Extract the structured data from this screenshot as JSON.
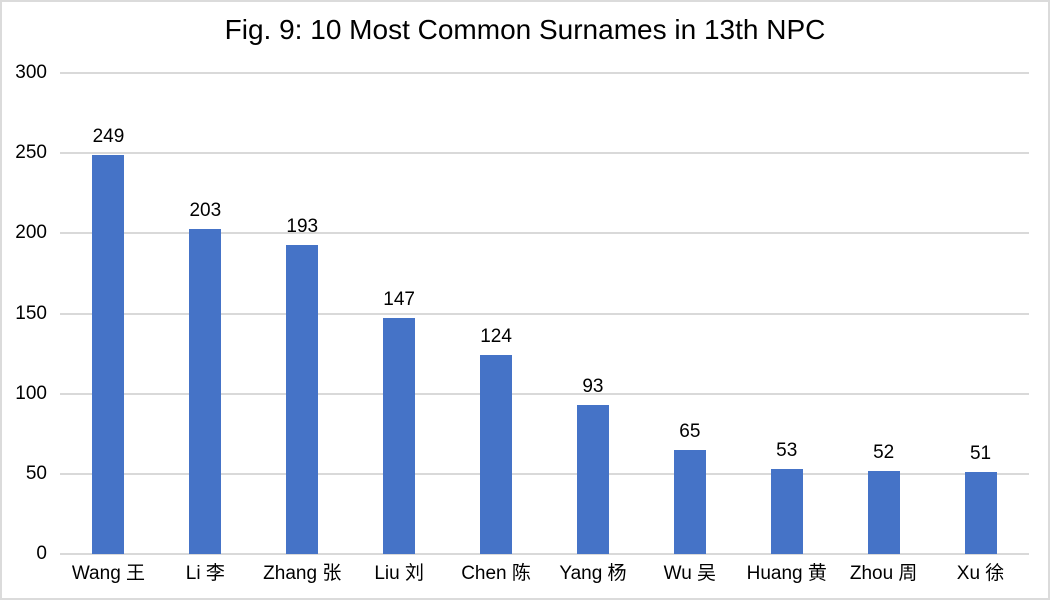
{
  "chart_data": {
    "type": "bar",
    "title": "Fig. 9: 10 Most Common Surnames in 13th NPC",
    "categories": [
      "Wang 王",
      "Li 李",
      "Zhang 张",
      "Liu 刘",
      "Chen 陈",
      "Yang 杨",
      "Wu 吴",
      "Huang 黄",
      "Zhou 周",
      "Xu 徐"
    ],
    "values": [
      249,
      203,
      193,
      147,
      124,
      93,
      65,
      53,
      52,
      51
    ],
    "data_labels": [
      "249",
      "203",
      "193",
      "147",
      "124",
      "93",
      "65",
      "53",
      "52",
      "51"
    ],
    "xlabel": "",
    "ylabel": "",
    "ylim": [
      0,
      300
    ],
    "yticks": [
      0,
      50,
      100,
      150,
      200,
      250,
      300
    ],
    "grid": "horizontal-only",
    "legend_position": "none",
    "colors": {
      "bar": "#4573C7",
      "gridline": "#D9D9D9",
      "text": "#000000",
      "canvas_border": "#DBDBDB",
      "background": "#FFFFFF"
    }
  }
}
